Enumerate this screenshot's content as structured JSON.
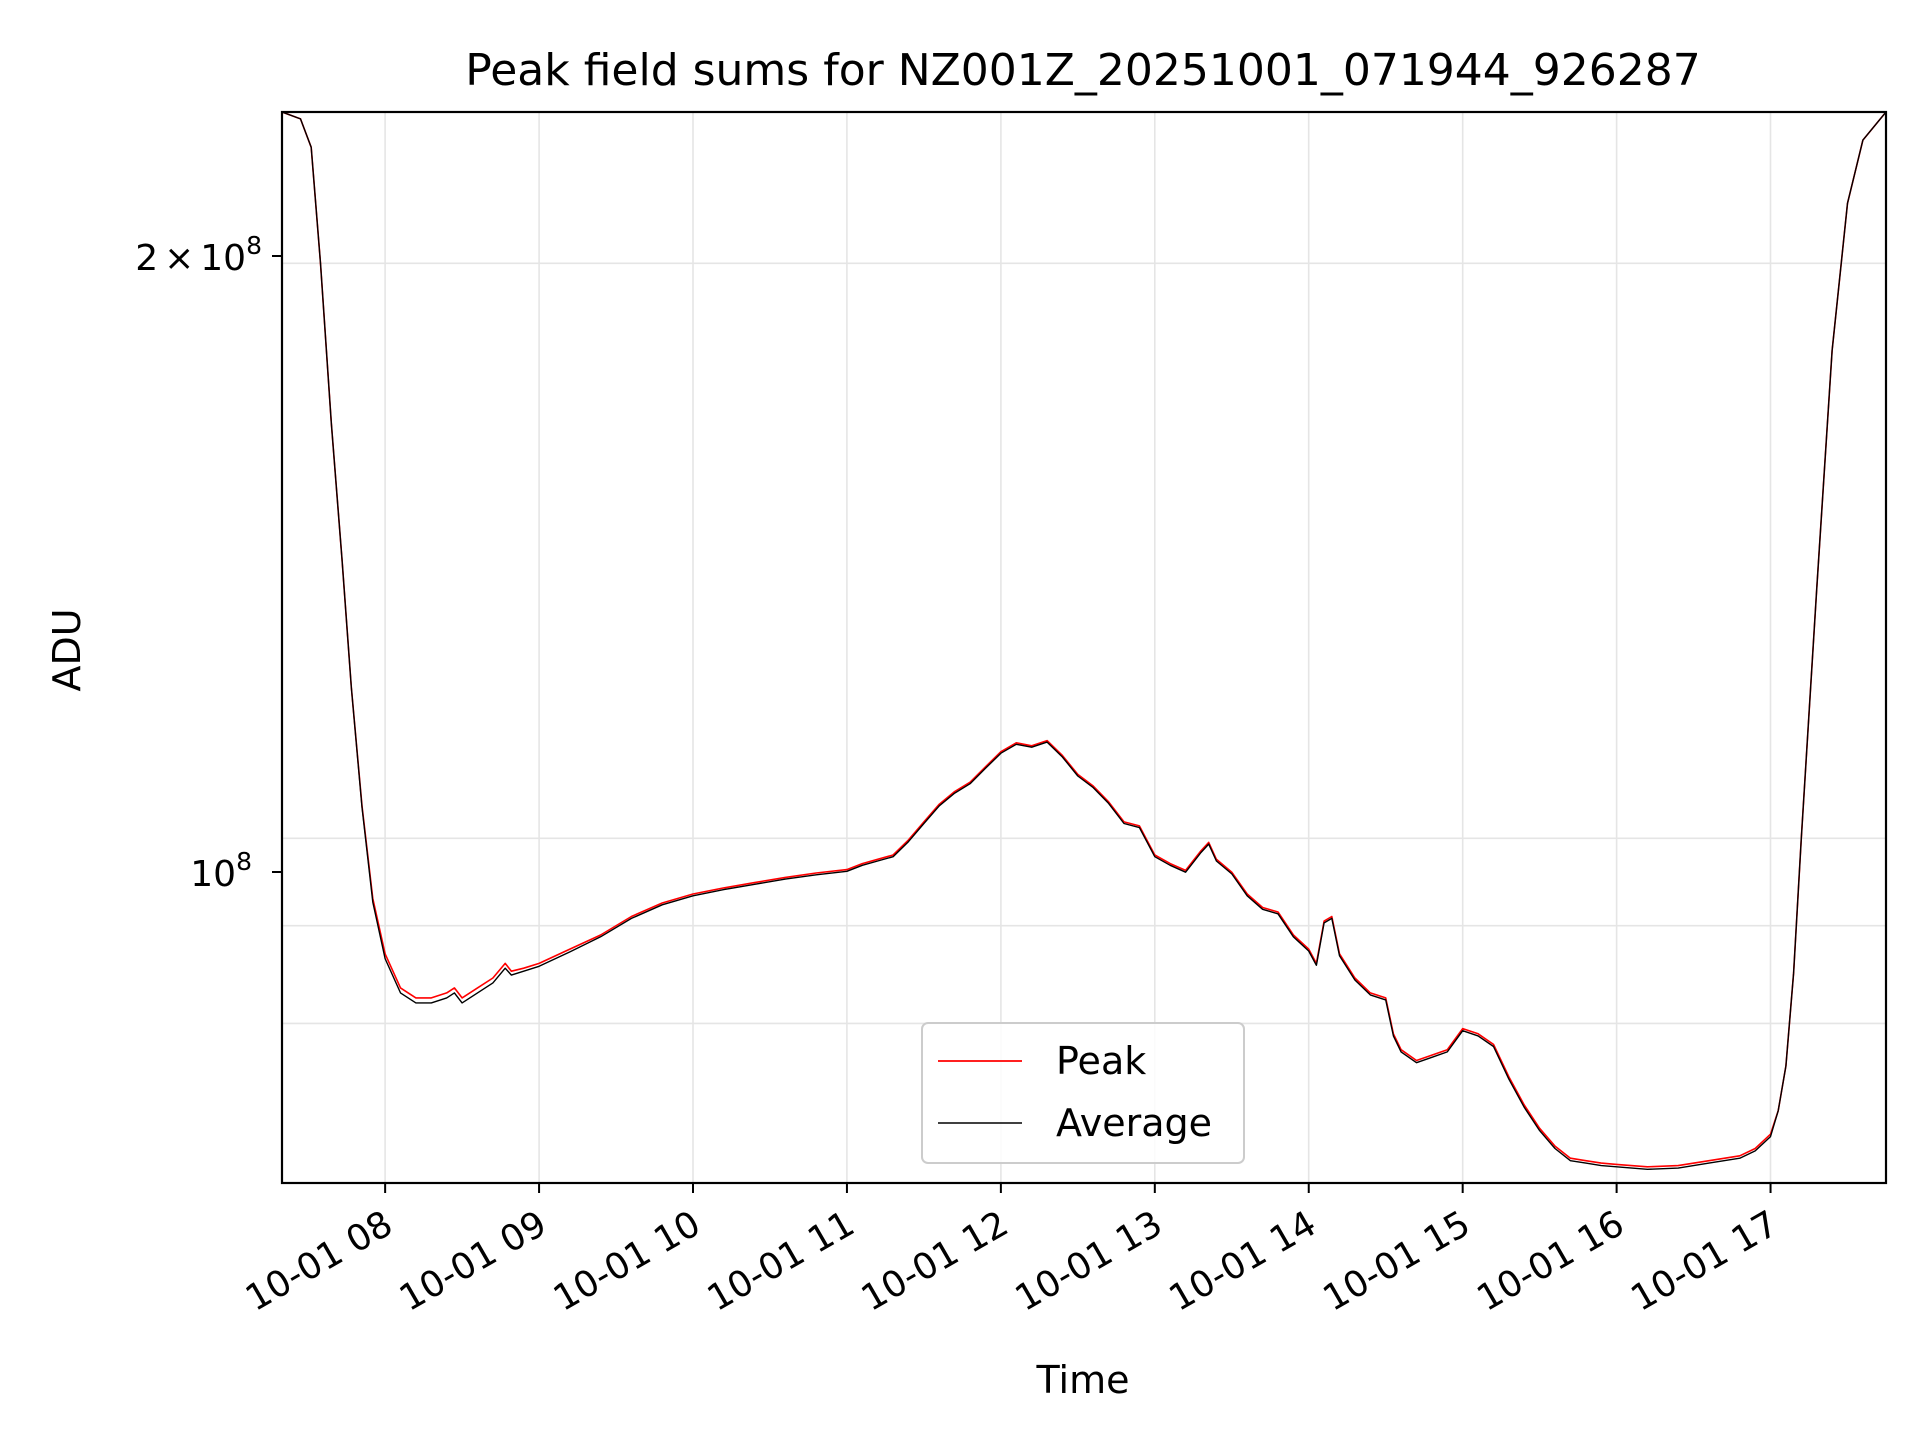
{
  "chart_data": {
    "type": "line",
    "title": "Peak field sums for NZ001Z_20251001_071944_926287",
    "xlabel": "Time",
    "ylabel": "ADU",
    "yscale": "log",
    "ylim": [
      66000000,
      240000000
    ],
    "xlim": [
      7.33,
      17.75
    ],
    "grid": true,
    "legend_position": "bottom-center",
    "x_tick_values": [
      8,
      9,
      10,
      11,
      12,
      13,
      14,
      15,
      16,
      17
    ],
    "x_tick_labels": [
      "10-01 08",
      "10-01 09",
      "10-01 10",
      "10-01 11",
      "10-01 12",
      "10-01 13",
      "10-01 14",
      "10-01 15",
      "10-01 16",
      "10-01 17"
    ],
    "y_tick_labels": [
      {
        "value": 200000000,
        "mantissa": "2",
        "times": "×",
        "base": "10",
        "exp": "8"
      },
      {
        "value": 100000000,
        "mantissa": "",
        "times": "",
        "base": "10",
        "exp": "8"
      }
    ],
    "y_minor_grid_values": [
      80000000,
      90000000
    ],
    "series": [
      {
        "name": "Peak",
        "color": "#ff0000",
        "x": [
          7.33,
          7.45,
          7.52,
          7.58,
          7.65,
          7.72,
          7.78,
          7.85,
          7.92,
          8.0,
          8.1,
          8.2,
          8.3,
          8.4,
          8.45,
          8.5,
          8.6,
          8.7,
          8.78,
          8.82,
          8.9,
          9.0,
          9.2,
          9.4,
          9.6,
          9.8,
          10.0,
          10.2,
          10.4,
          10.6,
          10.8,
          11.0,
          11.1,
          11.2,
          11.3,
          11.4,
          11.5,
          11.6,
          11.7,
          11.8,
          11.9,
          12.0,
          12.1,
          12.2,
          12.3,
          12.4,
          12.5,
          12.6,
          12.7,
          12.8,
          12.9,
          13.0,
          13.1,
          13.2,
          13.3,
          13.35,
          13.4,
          13.5,
          13.6,
          13.7,
          13.8,
          13.9,
          14.0,
          14.05,
          14.1,
          14.15,
          14.2,
          14.3,
          14.4,
          14.5,
          14.55,
          14.6,
          14.7,
          14.8,
          14.9,
          15.0,
          15.1,
          15.2,
          15.3,
          15.4,
          15.5,
          15.6,
          15.7,
          15.8,
          15.9,
          16.0,
          16.2,
          16.4,
          16.6,
          16.8,
          16.9,
          17.0,
          17.05,
          17.1,
          17.15,
          17.2,
          17.3,
          17.4,
          17.5,
          17.6,
          17.75
        ],
        "values": [
          240000000,
          238000000,
          230000000,
          200000000,
          165000000,
          140000000,
          120000000,
          104000000,
          93000000,
          87000000,
          83500000,
          82500000,
          82500000,
          83000000,
          83500000,
          82500000,
          83500000,
          84500000,
          86000000,
          85200000,
          85500000,
          86000000,
          87500000,
          89000000,
          91000000,
          92500000,
          93500000,
          94200000,
          94800000,
          95400000,
          95900000,
          96300000,
          97000000,
          97500000,
          98000000,
          99800000,
          102000000,
          104200000,
          105800000,
          107000000,
          109000000,
          111000000,
          112200000,
          111800000,
          112500000,
          110500000,
          108000000,
          106500000,
          104500000,
          102000000,
          101500000,
          98000000,
          97000000,
          96200000,
          98500000,
          99500000,
          97500000,
          96000000,
          93500000,
          92000000,
          91500000,
          89000000,
          87500000,
          86000000,
          90500000,
          91000000,
          87000000,
          84500000,
          83000000,
          82500000,
          79000000,
          77500000,
          76500000,
          77000000,
          77500000,
          79500000,
          79000000,
          78000000,
          75000000,
          72500000,
          70500000,
          69000000,
          68000000,
          67800000,
          67600000,
          67500000,
          67300000,
          67400000,
          67800000,
          68200000,
          68800000,
          70000000,
          72000000,
          76000000,
          85000000,
          100000000,
          135000000,
          180000000,
          215000000,
          232000000,
          240000000
        ]
      },
      {
        "name": "Average",
        "color": "#000000",
        "x": [
          7.33,
          7.45,
          7.52,
          7.58,
          7.65,
          7.72,
          7.78,
          7.85,
          7.92,
          8.0,
          8.1,
          8.2,
          8.3,
          8.4,
          8.45,
          8.5,
          8.6,
          8.7,
          8.78,
          8.82,
          8.9,
          9.0,
          9.2,
          9.4,
          9.6,
          9.8,
          10.0,
          10.2,
          10.4,
          10.6,
          10.8,
          11.0,
          11.1,
          11.2,
          11.3,
          11.4,
          11.5,
          11.6,
          11.7,
          11.8,
          11.9,
          12.0,
          12.1,
          12.2,
          12.3,
          12.4,
          12.5,
          12.6,
          12.7,
          12.8,
          12.9,
          13.0,
          13.1,
          13.2,
          13.3,
          13.35,
          13.4,
          13.5,
          13.6,
          13.7,
          13.8,
          13.9,
          14.0,
          14.05,
          14.1,
          14.15,
          14.2,
          14.3,
          14.4,
          14.5,
          14.55,
          14.6,
          14.7,
          14.8,
          14.9,
          15.0,
          15.1,
          15.2,
          15.3,
          15.4,
          15.5,
          15.6,
          15.7,
          15.8,
          15.9,
          16.0,
          16.2,
          16.4,
          16.6,
          16.8,
          16.9,
          17.0,
          17.05,
          17.1,
          17.15,
          17.2,
          17.3,
          17.4,
          17.5,
          17.6,
          17.75
        ],
        "values": [
          240000000,
          238000000,
          230000000,
          200000000,
          165000000,
          140000000,
          120000000,
          103800000,
          92600000,
          86500000,
          83000000,
          82000000,
          82000000,
          82500000,
          83000000,
          82000000,
          83000000,
          84000000,
          85500000,
          84800000,
          85200000,
          85700000,
          87200000,
          88800000,
          90800000,
          92300000,
          93300000,
          94000000,
          94600000,
          95200000,
          95700000,
          96100000,
          96800000,
          97300000,
          97800000,
          99600000,
          101800000,
          104000000,
          105600000,
          106800000,
          108800000,
          110800000,
          112000000,
          111600000,
          112300000,
          110300000,
          107800000,
          106300000,
          104300000,
          101800000,
          101300000,
          97800000,
          96800000,
          96000000,
          98300000,
          99300000,
          97300000,
          95800000,
          93300000,
          91800000,
          91300000,
          88800000,
          87300000,
          85800000,
          90300000,
          90800000,
          86800000,
          84300000,
          82800000,
          82300000,
          78800000,
          77300000,
          76300000,
          76800000,
          77300000,
          79300000,
          78800000,
          77800000,
          74800000,
          72300000,
          70300000,
          68800000,
          67800000,
          67600000,
          67400000,
          67300000,
          67100000,
          67200000,
          67600000,
          68000000,
          68600000,
          69800000,
          72000000,
          76000000,
          85000000,
          100000000,
          135000000,
          180000000,
          215000000,
          232000000,
          240000000
        ]
      }
    ]
  }
}
